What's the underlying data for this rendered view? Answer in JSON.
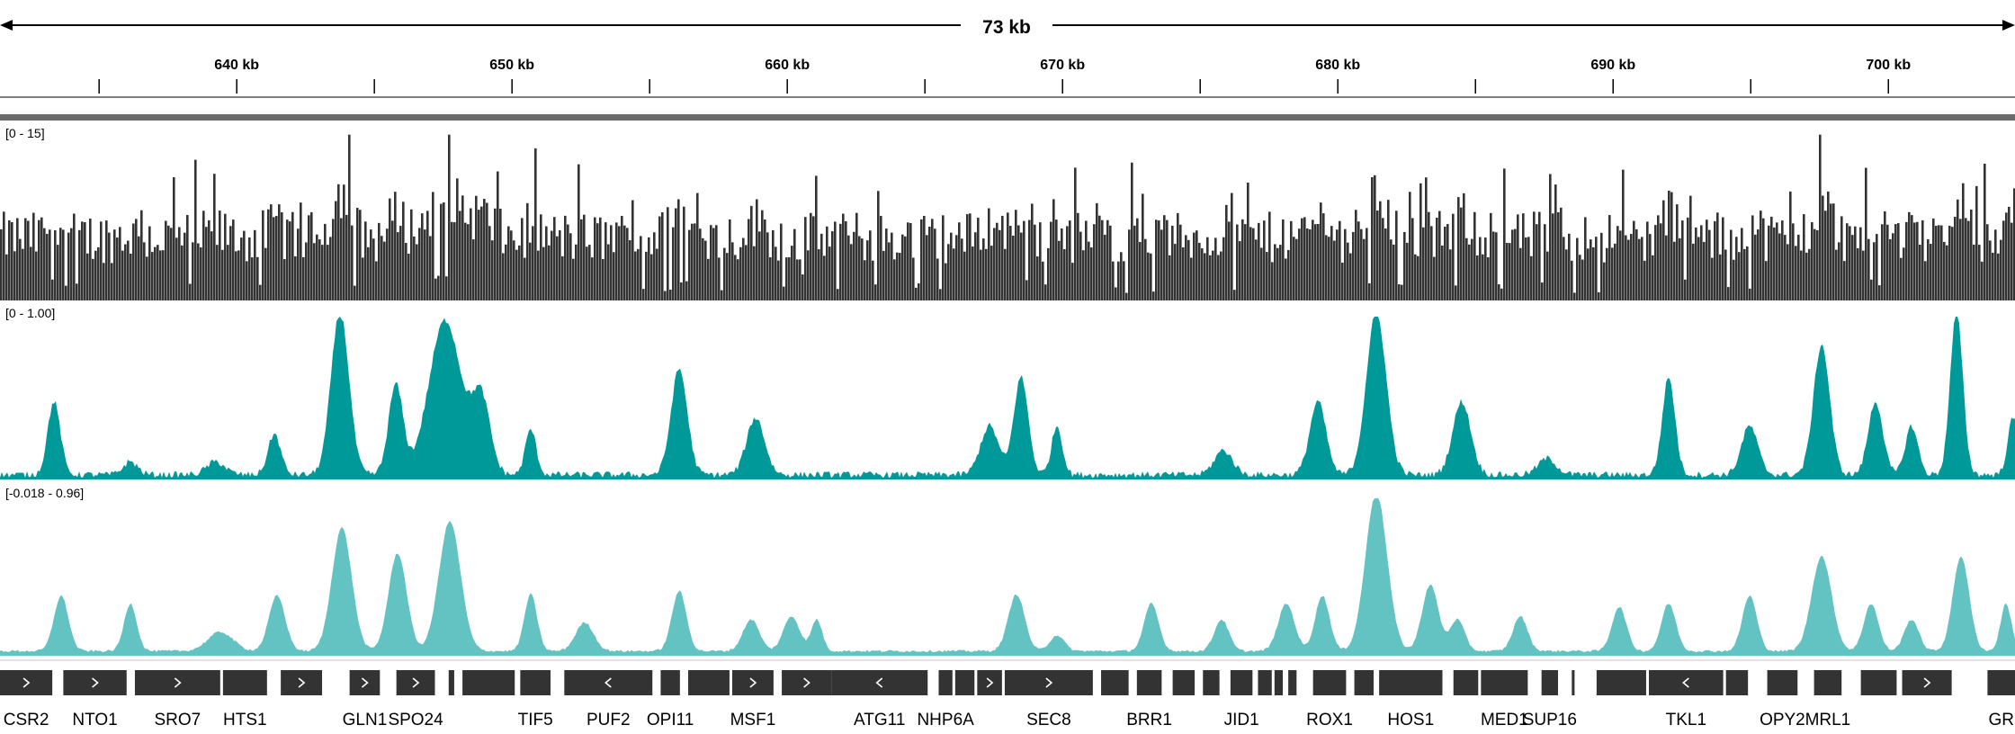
{
  "ruler": {
    "span_label": "73 kb",
    "unit": "kb",
    "start_kb": 631.4,
    "end_kb": 704.6,
    "tick_labels": [
      "640 kb",
      "650 kb",
      "660 kb",
      "670 kb",
      "680 kb",
      "690 kb",
      "700 kb"
    ]
  },
  "tracks": [
    {
      "id": "coverage-dark",
      "range_label": "[0 - 15]",
      "min": 0,
      "max": 15,
      "color": "#333333",
      "style": "bars"
    },
    {
      "id": "signal-teal",
      "range_label": "[0 - 1.00]",
      "min": 0,
      "max": 1.0,
      "color": "#00999a",
      "style": "area"
    },
    {
      "id": "signal-light-teal",
      "range_label": "[-0.018 - 0.96]",
      "min": -0.018,
      "max": 0.96,
      "color": "#63c3c3",
      "style": "area"
    }
  ],
  "genes": [
    {
      "name": "CSR2",
      "start_kb": 631.4,
      "end_kb": 633.3,
      "strand": "+"
    },
    {
      "name": "NTO1",
      "start_kb": 633.7,
      "end_kb": 636.0,
      "strand": "+"
    },
    {
      "name": "SRO7",
      "start_kb": 636.3,
      "end_kb": 639.4,
      "strand": "+"
    },
    {
      "name": "HTS1",
      "start_kb": 639.5,
      "end_kb": 641.1,
      "strand": ""
    },
    {
      "name": "",
      "start_kb": 641.6,
      "end_kb": 643.1,
      "strand": "+"
    },
    {
      "name": "GLN1",
      "start_kb": 644.1,
      "end_kb": 645.2,
      "strand": "+"
    },
    {
      "name": "SPO24",
      "start_kb": 645.8,
      "end_kb": 647.2,
      "strand": "+"
    },
    {
      "name": "",
      "start_kb": 647.7,
      "end_kb": 647.9,
      "strand": ""
    },
    {
      "name": "",
      "start_kb": 648.2,
      "end_kb": 650.1,
      "strand": ""
    },
    {
      "name": "TIF5",
      "start_kb": 650.3,
      "end_kb": 651.4,
      "strand": ""
    },
    {
      "name": "PUF2",
      "start_kb": 651.9,
      "end_kb": 655.1,
      "strand": "-"
    },
    {
      "name": "OPI11",
      "start_kb": 655.4,
      "end_kb": 656.1,
      "strand": ""
    },
    {
      "name": "",
      "start_kb": 656.4,
      "end_kb": 657.9,
      "strand": ""
    },
    {
      "name": "MSF1",
      "start_kb": 658.0,
      "end_kb": 659.5,
      "strand": "+"
    },
    {
      "name": "",
      "start_kb": 659.8,
      "end_kb": 661.6,
      "strand": "+"
    },
    {
      "name": "ATG11",
      "start_kb": 661.6,
      "end_kb": 665.1,
      "strand": "-"
    },
    {
      "name": "NHP6A",
      "start_kb": 665.5,
      "end_kb": 666.0,
      "strand": ""
    },
    {
      "name": "",
      "start_kb": 666.1,
      "end_kb": 666.8,
      "strand": ""
    },
    {
      "name": "",
      "start_kb": 666.9,
      "end_kb": 667.8,
      "strand": "+"
    },
    {
      "name": "SEC8",
      "start_kb": 667.9,
      "end_kb": 671.1,
      "strand": "+"
    },
    {
      "name": "",
      "start_kb": 671.4,
      "end_kb": 672.4,
      "strand": ""
    },
    {
      "name": "BRR1",
      "start_kb": 672.7,
      "end_kb": 673.6,
      "strand": ""
    },
    {
      "name": "",
      "start_kb": 674.0,
      "end_kb": 674.8,
      "strand": ""
    },
    {
      "name": "",
      "start_kb": 675.1,
      "end_kb": 675.7,
      "strand": ""
    },
    {
      "name": "JID1",
      "start_kb": 676.1,
      "end_kb": 676.9,
      "strand": ""
    },
    {
      "name": "",
      "start_kb": 677.1,
      "end_kb": 677.6,
      "strand": ""
    },
    {
      "name": "",
      "start_kb": 677.7,
      "end_kb": 678.0,
      "strand": ""
    },
    {
      "name": "",
      "start_kb": 678.2,
      "end_kb": 678.5,
      "strand": ""
    },
    {
      "name": "ROX1",
      "start_kb": 679.1,
      "end_kb": 680.3,
      "strand": ""
    },
    {
      "name": "",
      "start_kb": 680.6,
      "end_kb": 681.3,
      "strand": ""
    },
    {
      "name": "HOS1",
      "start_kb": 681.5,
      "end_kb": 683.8,
      "strand": ""
    },
    {
      "name": "",
      "start_kb": 684.2,
      "end_kb": 685.1,
      "strand": ""
    },
    {
      "name": "MED1",
      "start_kb": 685.2,
      "end_kb": 686.9,
      "strand": ""
    },
    {
      "name": "SUP16",
      "start_kb": 687.4,
      "end_kb": 688.0,
      "strand": ""
    },
    {
      "name": "",
      "start_kb": 688.5,
      "end_kb": 688.6,
      "strand": ""
    },
    {
      "name": "",
      "start_kb": 689.4,
      "end_kb": 691.2,
      "strand": ""
    },
    {
      "name": "TKL1",
      "start_kb": 691.3,
      "end_kb": 694.0,
      "strand": "-"
    },
    {
      "name": "",
      "start_kb": 694.1,
      "end_kb": 694.9,
      "strand": ""
    },
    {
      "name": "OPY2",
      "start_kb": 695.6,
      "end_kb": 696.7,
      "strand": ""
    },
    {
      "name": "MRL1",
      "start_kb": 697.3,
      "end_kb": 698.3,
      "strand": ""
    },
    {
      "name": "",
      "start_kb": 699.0,
      "end_kb": 700.3,
      "strand": ""
    },
    {
      "name": "",
      "start_kb": 700.5,
      "end_kb": 702.3,
      "strand": "+"
    },
    {
      "name": "GR",
      "start_kb": 703.6,
      "end_kb": 704.6,
      "strand": ""
    }
  ]
}
